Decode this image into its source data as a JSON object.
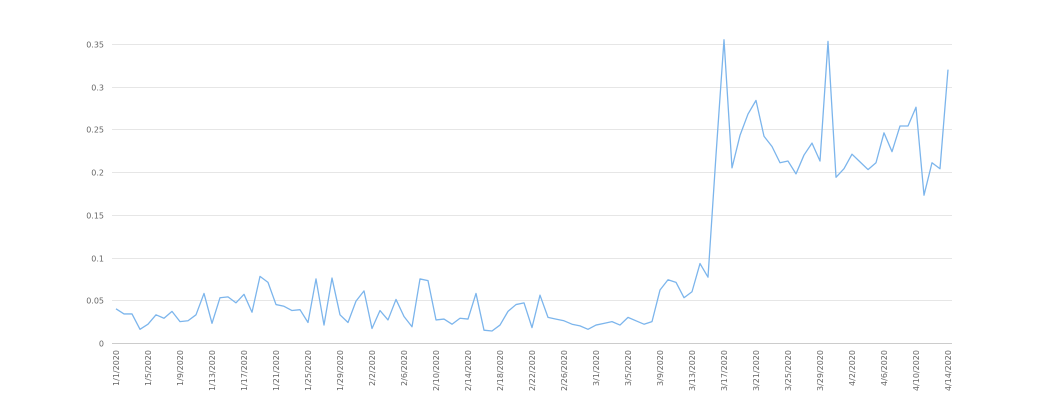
{
  "chart_data": {
    "type": "line",
    "title": "",
    "xlabel": "",
    "ylabel": "",
    "ylim": [
      0,
      0.35
    ],
    "yticks": [
      0,
      0.05,
      0.1,
      0.15,
      0.2,
      0.25,
      0.3,
      0.35
    ],
    "ytick_labels": [
      "0",
      "0.05",
      "0.1",
      "0.15",
      "0.2",
      "0.25",
      "0.3",
      "0.35"
    ],
    "grid": true,
    "legend": false,
    "color": "#7cb5ec",
    "xtick_labels": [
      "1/1/2020",
      "1/5/2020",
      "1/9/2020",
      "1/13/2020",
      "1/17/2020",
      "1/21/2020",
      "1/25/2020",
      "1/29/2020",
      "2/2/2020",
      "2/6/2020",
      "2/10/2020",
      "2/14/2020",
      "2/18/2020",
      "2/22/2020",
      "2/26/2020",
      "3/1/2020",
      "3/5/2020",
      "3/9/2020",
      "3/13/2020",
      "3/17/2020",
      "3/21/2020",
      "3/25/2020",
      "3/29/2020",
      "4/2/2020",
      "4/6/2020",
      "4/10/2020",
      "4/14/2020"
    ],
    "x": [
      "2020-01-01",
      "2020-01-02",
      "2020-01-03",
      "2020-01-04",
      "2020-01-05",
      "2020-01-06",
      "2020-01-07",
      "2020-01-08",
      "2020-01-09",
      "2020-01-10",
      "2020-01-11",
      "2020-01-12",
      "2020-01-13",
      "2020-01-14",
      "2020-01-15",
      "2020-01-16",
      "2020-01-17",
      "2020-01-18",
      "2020-01-19",
      "2020-01-20",
      "2020-01-21",
      "2020-01-22",
      "2020-01-23",
      "2020-01-24",
      "2020-01-25",
      "2020-01-26",
      "2020-01-27",
      "2020-01-28",
      "2020-01-29",
      "2020-01-30",
      "2020-01-31",
      "2020-02-01",
      "2020-02-02",
      "2020-02-03",
      "2020-02-04",
      "2020-02-05",
      "2020-02-06",
      "2020-02-07",
      "2020-02-08",
      "2020-02-09",
      "2020-02-10",
      "2020-02-11",
      "2020-02-12",
      "2020-02-13",
      "2020-02-14",
      "2020-02-15",
      "2020-02-16",
      "2020-02-17",
      "2020-02-18",
      "2020-02-19",
      "2020-02-20",
      "2020-02-21",
      "2020-02-22",
      "2020-02-23",
      "2020-02-24",
      "2020-02-25",
      "2020-02-26",
      "2020-02-27",
      "2020-02-28",
      "2020-02-29",
      "2020-03-01",
      "2020-03-02",
      "2020-03-03",
      "2020-03-04",
      "2020-03-05",
      "2020-03-06",
      "2020-03-07",
      "2020-03-08",
      "2020-03-09",
      "2020-03-10",
      "2020-03-11",
      "2020-03-12",
      "2020-03-13",
      "2020-03-14",
      "2020-03-15",
      "2020-03-16",
      "2020-03-17",
      "2020-03-18",
      "2020-03-19",
      "2020-03-20",
      "2020-03-21",
      "2020-03-22",
      "2020-03-23",
      "2020-03-24",
      "2020-03-25",
      "2020-03-26",
      "2020-03-27",
      "2020-03-28",
      "2020-03-29",
      "2020-03-30",
      "2020-03-31",
      "2020-04-01",
      "2020-04-02",
      "2020-04-03",
      "2020-04-04",
      "2020-04-05",
      "2020-04-06",
      "2020-04-07",
      "2020-04-08",
      "2020-04-09",
      "2020-04-10",
      "2020-04-11",
      "2020-04-12",
      "2020-04-13",
      "2020-04-14"
    ],
    "series": [
      {
        "values": [
          0.04,
          0.034,
          0.034,
          0.016,
          0.022,
          0.033,
          0.029,
          0.037,
          0.025,
          0.026,
          0.033,
          0.058,
          0.023,
          0.053,
          0.054,
          0.047,
          0.057,
          0.036,
          0.078,
          0.071,
          0.045,
          0.043,
          0.038,
          0.039,
          0.024,
          0.075,
          0.021,
          0.076,
          0.033,
          0.024,
          0.049,
          0.061,
          0.017,
          0.038,
          0.027,
          0.051,
          0.031,
          0.019,
          0.075,
          0.073,
          0.027,
          0.028,
          0.022,
          0.029,
          0.028,
          0.058,
          0.015,
          0.014,
          0.021,
          0.037,
          0.045,
          0.047,
          0.018,
          0.056,
          0.03,
          0.028,
          0.026,
          0.022,
          0.02,
          0.016,
          0.021,
          0.023,
          0.025,
          0.021,
          0.03,
          0.026,
          0.022,
          0.025,
          0.062,
          0.074,
          0.071,
          0.053,
          0.06,
          0.093,
          0.077,
          0.22,
          0.355,
          0.205,
          0.243,
          0.268,
          0.284,
          0.242,
          0.23,
          0.211,
          0.213,
          0.198,
          0.22,
          0.234,
          0.213,
          0.353,
          0.194,
          0.204,
          0.221,
          0.212,
          0.203,
          0.211,
          0.246,
          0.224,
          0.254,
          0.254,
          0.276,
          0.173,
          0.211,
          0.204,
          0.32
        ]
      }
    ]
  }
}
